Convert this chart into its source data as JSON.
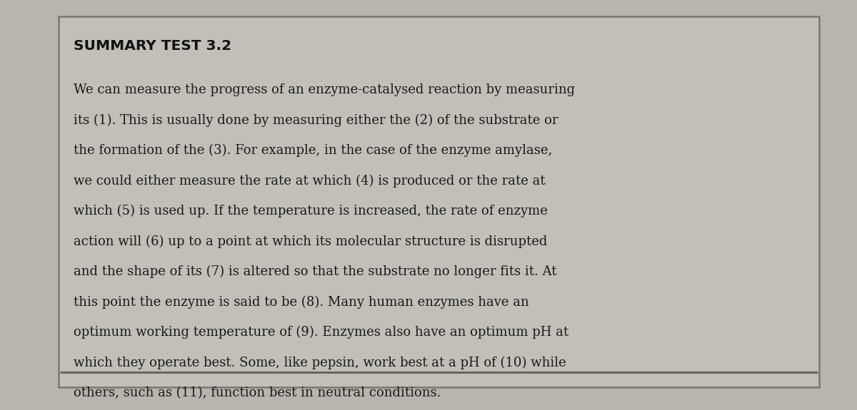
{
  "title": "SUMMARY TEST 3.2",
  "body_lines": [
    "We can measure the progress of an enzyme-catalysed reaction by measuring",
    "its (1). This is usually done by measuring either the (2) of the substrate or",
    "the formation of the (3). For example, in the case of the enzyme amylase,",
    "we could either measure the rate at which (4) is produced or the rate at",
    "which (5) is used up. If the temperature is increased, the rate of enzyme",
    "action will (6) up to a point at which its molecular structure is disrupted",
    "and the shape of its (7) is altered so that the substrate no longer fits it. At",
    "this point the enzyme is said to be (8). Many human enzymes have an",
    "optimum working temperature of (9). Enzymes also have an optimum pH at",
    "which they operate best. Some, like pepsin, work best at a pH of (10) while",
    "others, such as (11), function best in neutral conditions."
  ],
  "bg_color": "#b8b5ae",
  "box_bg_color": "#c2bfb8",
  "text_color": "#1a1a1a",
  "title_color": "#111111",
  "border_color": "#777770",
  "bottom_line_color": "#666660",
  "title_fontsize": 14.5,
  "body_fontsize": 13.0,
  "fig_width": 12.0,
  "fig_height": 5.75
}
